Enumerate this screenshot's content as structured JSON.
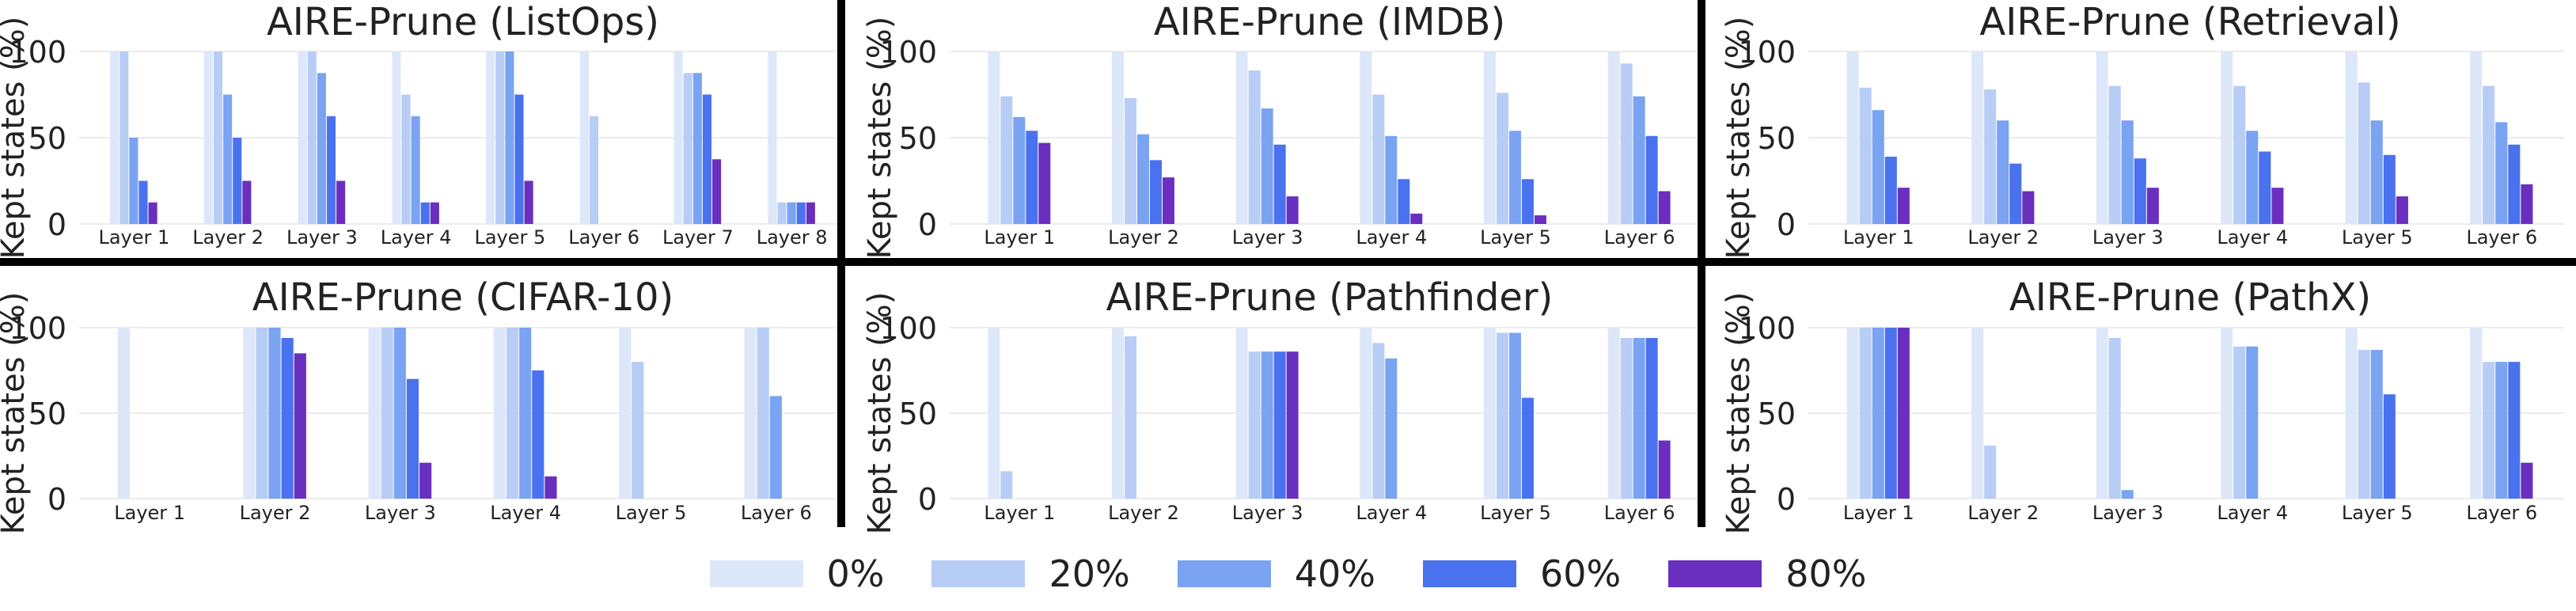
{
  "chart_data": [
    {
      "type": "bar",
      "title": "AIRE-Prune (ListOps)",
      "ylabel": "Kept states (%)",
      "ylim": [
        0,
        100
      ],
      "yticks": [
        0,
        50,
        100
      ],
      "grid": true,
      "categories": [
        "Layer 1",
        "Layer 2",
        "Layer 3",
        "Layer 4",
        "Layer 5",
        "Layer 6",
        "Layer 7",
        "Layer 8"
      ],
      "series": [
        {
          "name": "0%",
          "values": [
            100,
            100,
            100,
            100,
            100,
            100,
            100,
            100
          ]
        },
        {
          "name": "20%",
          "values": [
            100,
            100,
            100,
            75,
            100,
            62.5,
            87.5,
            12.5
          ]
        },
        {
          "name": "40%",
          "values": [
            50,
            75,
            87.5,
            62.5,
            100,
            0,
            87.5,
            12.5
          ]
        },
        {
          "name": "60%",
          "values": [
            25,
            50,
            62.5,
            12.5,
            75,
            0,
            75,
            12.5
          ]
        },
        {
          "name": "80%",
          "values": [
            12.5,
            25,
            25,
            12.5,
            25,
            0,
            37.5,
            12.5
          ]
        }
      ]
    },
    {
      "type": "bar",
      "title": "AIRE-Prune (IMDB)",
      "ylabel": "Kept states (%)",
      "ylim": [
        0,
        100
      ],
      "yticks": [
        0,
        50,
        100
      ],
      "grid": true,
      "categories": [
        "Layer 1",
        "Layer 2",
        "Layer 3",
        "Layer 4",
        "Layer 5",
        "Layer 6"
      ],
      "series": [
        {
          "name": "0%",
          "values": [
            100,
            100,
            100,
            100,
            100,
            100
          ]
        },
        {
          "name": "20%",
          "values": [
            74,
            73,
            89,
            75,
            76,
            93
          ]
        },
        {
          "name": "40%",
          "values": [
            62,
            52,
            67,
            51,
            54,
            74
          ]
        },
        {
          "name": "60%",
          "values": [
            54,
            37,
            46,
            26,
            26,
            51
          ]
        },
        {
          "name": "80%",
          "values": [
            47,
            27,
            16,
            6,
            5,
            19
          ]
        }
      ]
    },
    {
      "type": "bar",
      "title": "AIRE-Prune (Retrieval)",
      "ylabel": "Kept states (%)",
      "ylim": [
        0,
        100
      ],
      "yticks": [
        0,
        50,
        100
      ],
      "grid": true,
      "categories": [
        "Layer 1",
        "Layer 2",
        "Layer 3",
        "Layer 4",
        "Layer 5",
        "Layer 6"
      ],
      "series": [
        {
          "name": "0%",
          "values": [
            100,
            100,
            100,
            100,
            100,
            100
          ]
        },
        {
          "name": "20%",
          "values": [
            79,
            78,
            80,
            80,
            82,
            80
          ]
        },
        {
          "name": "40%",
          "values": [
            66,
            60,
            60,
            54,
            60,
            59
          ]
        },
        {
          "name": "60%",
          "values": [
            39,
            35,
            38,
            42,
            40,
            46
          ]
        },
        {
          "name": "80%",
          "values": [
            21,
            19,
            21,
            21,
            16,
            23
          ]
        }
      ]
    },
    {
      "type": "bar",
      "title": "AIRE-Prune (CIFAR-10)",
      "ylabel": "Kept states (%)",
      "ylim": [
        0,
        100
      ],
      "yticks": [
        0,
        50,
        100
      ],
      "grid": true,
      "categories": [
        "Layer 1",
        "Layer 2",
        "Layer 3",
        "Layer 4",
        "Layer 5",
        "Layer 6"
      ],
      "series": [
        {
          "name": "0%",
          "values": [
            100,
            100,
            100,
            100,
            100,
            100
          ]
        },
        {
          "name": "20%",
          "values": [
            0,
            100,
            100,
            100,
            80,
            100
          ]
        },
        {
          "name": "40%",
          "values": [
            0,
            100,
            100,
            100,
            0,
            60
          ]
        },
        {
          "name": "60%",
          "values": [
            0,
            94,
            70,
            75,
            0,
            0
          ]
        },
        {
          "name": "80%",
          "values": [
            0,
            85,
            21,
            13,
            0,
            0
          ]
        }
      ]
    },
    {
      "type": "bar",
      "title": "AIRE-Prune (Pathfinder)",
      "ylabel": "Kept states (%)",
      "ylim": [
        0,
        100
      ],
      "yticks": [
        0,
        50,
        100
      ],
      "grid": true,
      "categories": [
        "Layer 1",
        "Layer 2",
        "Layer 3",
        "Layer 4",
        "Layer 5",
        "Layer 6"
      ],
      "series": [
        {
          "name": "0%",
          "values": [
            100,
            100,
            100,
            100,
            100,
            100
          ]
        },
        {
          "name": "20%",
          "values": [
            16,
            95,
            86,
            91,
            97,
            94
          ]
        },
        {
          "name": "40%",
          "values": [
            0,
            0,
            86,
            82,
            97,
            94
          ]
        },
        {
          "name": "60%",
          "values": [
            0,
            0,
            86,
            0,
            59,
            94
          ]
        },
        {
          "name": "80%",
          "values": [
            0,
            0,
            86,
            0,
            0,
            34
          ]
        }
      ]
    },
    {
      "type": "bar",
      "title": "AIRE-Prune (PathX)",
      "ylabel": "Kept states (%)",
      "ylim": [
        0,
        100
      ],
      "yticks": [
        0,
        50,
        100
      ],
      "grid": true,
      "categories": [
        "Layer 1",
        "Layer 2",
        "Layer 3",
        "Layer 4",
        "Layer 5",
        "Layer 6"
      ],
      "series": [
        {
          "name": "0%",
          "values": [
            100,
            100,
            100,
            100,
            100,
            100
          ]
        },
        {
          "name": "20%",
          "values": [
            100,
            31,
            94,
            89,
            87,
            80
          ]
        },
        {
          "name": "40%",
          "values": [
            100,
            0,
            5,
            89,
            87,
            80
          ]
        },
        {
          "name": "60%",
          "values": [
            100,
            0,
            0,
            0,
            61,
            80
          ]
        },
        {
          "name": "80%",
          "values": [
            100,
            0,
            0,
            0,
            0,
            21
          ]
        }
      ]
    }
  ],
  "legend": {
    "placement": "bottom-center",
    "items": [
      {
        "label": "0%",
        "color": "#dde7fa"
      },
      {
        "label": "20%",
        "color": "#b7cdf6"
      },
      {
        "label": "40%",
        "color": "#7aa3f2"
      },
      {
        "label": "60%",
        "color": "#4a72ee"
      },
      {
        "label": "80%",
        "color": "#6a2fbf"
      }
    ]
  }
}
